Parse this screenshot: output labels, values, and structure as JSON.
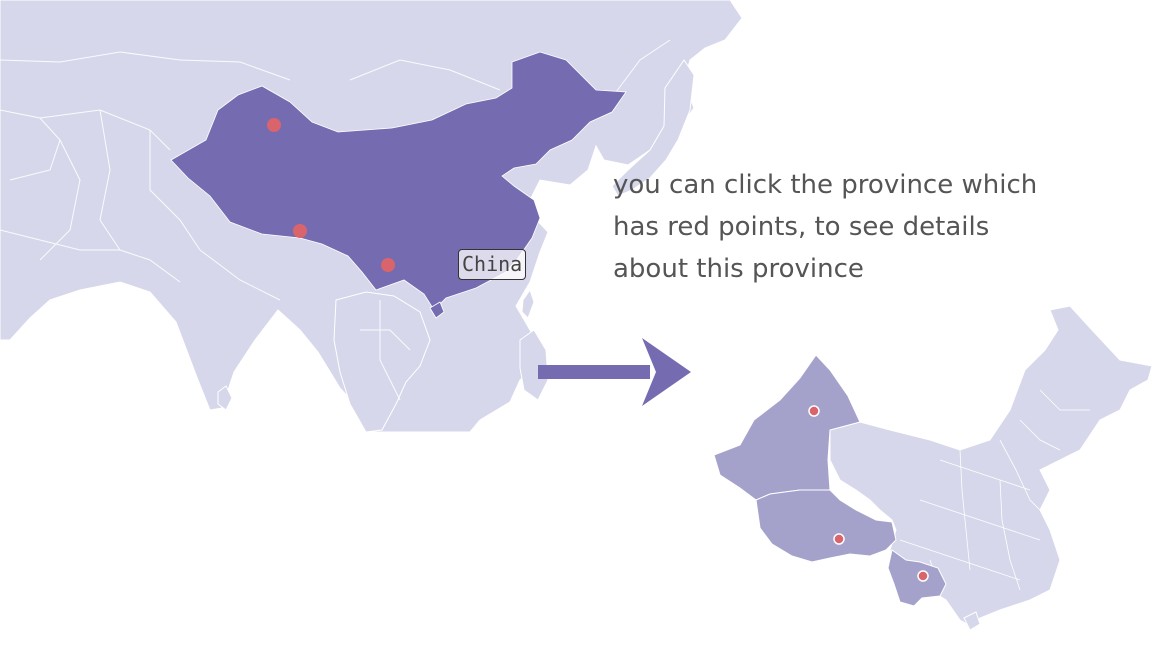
{
  "colors": {
    "land": "#d6d7ea",
    "highlight": "#756bb1",
    "selected_province": "#a4a2cb",
    "point": "#d9646b",
    "arrow": "#756bb1",
    "text": "#555555"
  },
  "tooltip": {
    "label": "China"
  },
  "instructions": {
    "line1": "you can click the province which",
    "line2": "has red points, to see details",
    "line3": "about this province"
  },
  "world_map": {
    "highlighted_country": "China",
    "point_count": 3
  },
  "province_map": {
    "highlighted_provinces": [
      "Xinjiang",
      "Tibet",
      "Yunnan"
    ]
  }
}
